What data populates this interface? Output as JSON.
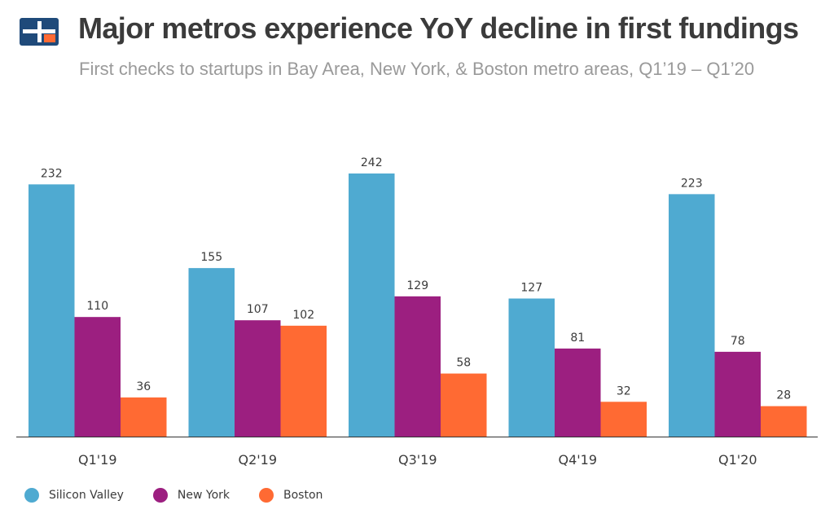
{
  "header": {
    "title": "Major metros experience YoY decline in first fundings",
    "subtitle": "First checks to startups in Bay Area, New York, & Boston metro areas, Q1’19 – Q1’20",
    "logo_icon": "cb-insights-logo-icon"
  },
  "colors": {
    "silicon_valley": "#4faad1",
    "new_york": "#9c1f80",
    "boston": "#ff6a33",
    "axis": "#333333",
    "text": "#3b3b3b"
  },
  "chart_data": {
    "type": "bar",
    "title": "Major metros experience YoY decline in first fundings",
    "subtitle": "First checks to startups in Bay Area, New York, & Boston metro areas, Q1’19 – Q1’20",
    "categories": [
      "Q1'19",
      "Q2'19",
      "Q3'19",
      "Q4'19",
      "Q1'20"
    ],
    "series": [
      {
        "name": "Silicon Valley",
        "values": [
          232,
          155,
          242,
          127,
          223
        ]
      },
      {
        "name": "New York",
        "values": [
          110,
          107,
          129,
          81,
          78
        ]
      },
      {
        "name": "Boston",
        "values": [
          36,
          102,
          58,
          32,
          28
        ]
      }
    ],
    "ylim": [
      0,
      242
    ],
    "grid": false,
    "legend_position": "bottom-left",
    "data_labels": true
  }
}
